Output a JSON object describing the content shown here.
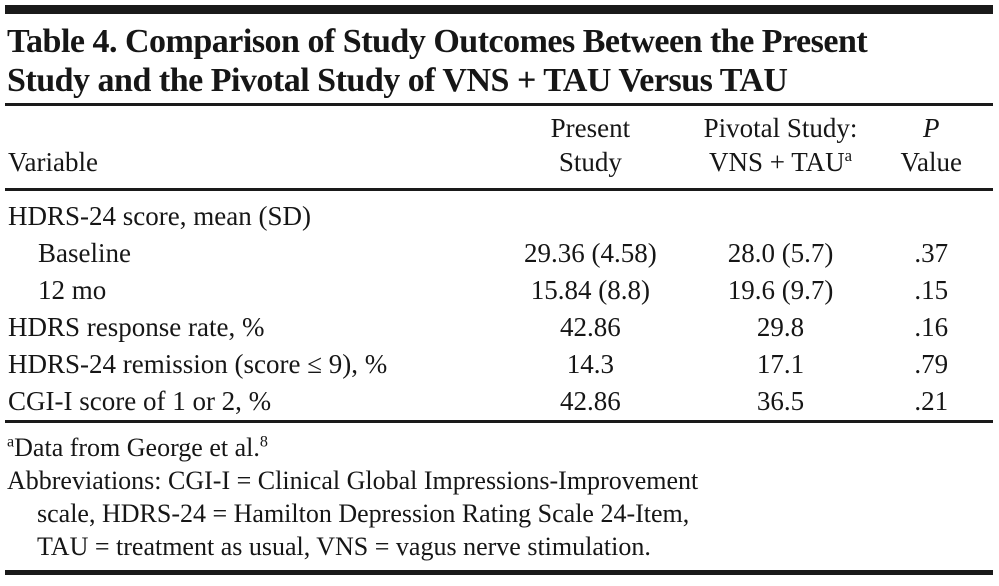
{
  "page": {
    "title_lines": [
      "Table 4. Comparison of Study Outcomes Between the Present",
      "Study and the Pivotal Study of VNS + TAU Versus TAU"
    ]
  },
  "table": {
    "columns": {
      "variable": "Variable",
      "present_line1": "Present",
      "present_line2": "Study",
      "pivotal_line1": "Pivotal Study:",
      "pivotal_line2": "VNS + TAU",
      "pivotal_sup": "a",
      "p_line1": "P",
      "p_line2": "Value"
    },
    "rows": [
      {
        "label": "HDRS-24 score, mean (SD)",
        "present": "",
        "pivotal": "",
        "p": ""
      },
      {
        "label": "Baseline",
        "present": "29.36 (4.58)",
        "pivotal": "28.0 (5.7)",
        "p": ".37"
      },
      {
        "label": "12 mo",
        "present": "15.84 (8.8)",
        "pivotal": "19.6 (9.7)",
        "p": ".15"
      },
      {
        "label": "HDRS response rate, %",
        "present": "42.86",
        "pivotal": "29.8",
        "p": ".16"
      },
      {
        "label": "HDRS-24 remission (score ≤ 9), %",
        "present": "14.3",
        "pivotal": "17.1",
        "p": ".79"
      },
      {
        "label": "CGI-I score of 1 or 2, %",
        "present": "42.86",
        "pivotal": "36.5",
        "p": ".21"
      }
    ]
  },
  "footnotes": {
    "a_sup": "a",
    "a_text": "Data from George et al.",
    "a_ref_sup": "8",
    "abbr_lines": [
      "Abbreviations: CGI-I = Clinical Global Impressions-Improvement",
      "scale, HDRS-24 = Hamilton Depression Rating Scale 24-Item,",
      "TAU = treatment as usual, VNS = vagus nerve stimulation."
    ]
  },
  "colors": {
    "text": "#161616",
    "rule": "#1a1a1a",
    "background": "#ffffff"
  }
}
